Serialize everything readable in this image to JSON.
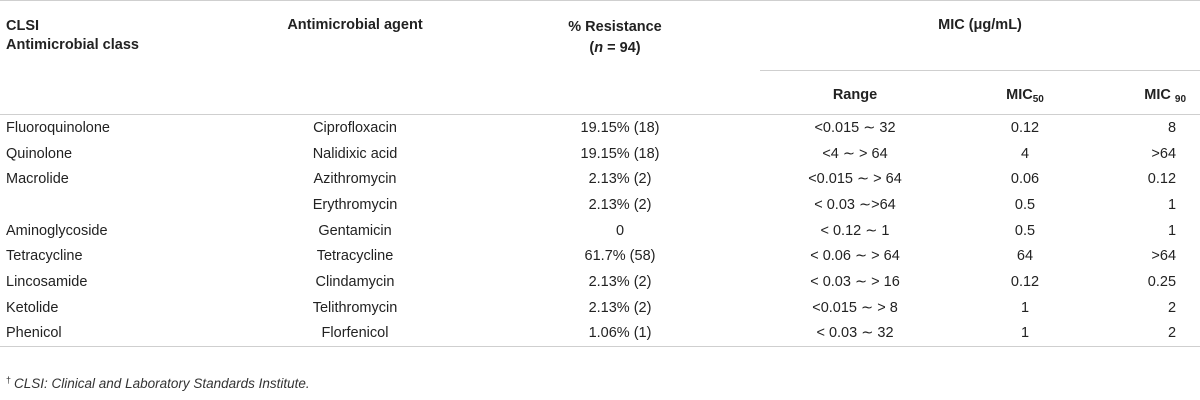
{
  "header": {
    "class_line1": "CLSI",
    "class_line2": "Antimicrobial class",
    "agent": "Antimicrobial agent",
    "resistance_line1": "% Resistance",
    "resistance_n_open": "(",
    "resistance_n_var": "n",
    "resistance_n_rest": " = 94)",
    "mic_group": "MIC (μg/mL)",
    "range": "Range",
    "mic50_base": "MIC",
    "mic50_sub": "50",
    "mic90_base": "MIC ",
    "mic90_sub": "90"
  },
  "rows": [
    {
      "class": "Fluoroquinolone",
      "agent": "Ciprofloxacin",
      "resistance": "19.15% (18)",
      "range": "<0.015 ∼ 32",
      "mic50": "0.12",
      "mic90": "8"
    },
    {
      "class": "Quinolone",
      "agent": "Nalidixic acid",
      "resistance": "19.15% (18)",
      "range": "<4 ∼ > 64",
      "mic50": "4",
      "mic90": ">64"
    },
    {
      "class": "Macrolide",
      "agent": "Azithromycin",
      "resistance": "2.13% (2)",
      "range": "<0.015 ∼ > 64",
      "mic50": "0.06",
      "mic90": "0.12"
    },
    {
      "class": "",
      "agent": "Erythromycin",
      "resistance": "2.13% (2)",
      "range": "< 0.03 ∼>64",
      "mic50": "0.5",
      "mic90": "1"
    },
    {
      "class": "Aminoglycoside",
      "agent": "Gentamicin",
      "resistance": "0",
      "range": "< 0.12 ∼ 1",
      "mic50": "0.5",
      "mic90": "1"
    },
    {
      "class": "Tetracycline",
      "agent": "Tetracycline",
      "resistance": "61.7% (58)",
      "range": "< 0.06 ∼ > 64",
      "mic50": "64",
      "mic90": ">64"
    },
    {
      "class": "Lincosamide",
      "agent": "Clindamycin",
      "resistance": "2.13% (2)",
      "range": "< 0.03 ∼ > 16",
      "mic50": "0.12",
      "mic90": "0.25"
    },
    {
      "class": "Ketolide",
      "agent": "Telithromycin",
      "resistance": "2.13% (2)",
      "range": "<0.015 ∼ > 8",
      "mic50": "1",
      "mic90": "2"
    },
    {
      "class": "Phenicol",
      "agent": "Florfenicol",
      "resistance": "1.06% (1)",
      "range": "< 0.03 ∼ 32",
      "mic50": "1",
      "mic90": "2"
    }
  ],
  "footnote": {
    "marker": "†",
    "text": "CLSI: Clinical and Laboratory Standards Institute."
  }
}
